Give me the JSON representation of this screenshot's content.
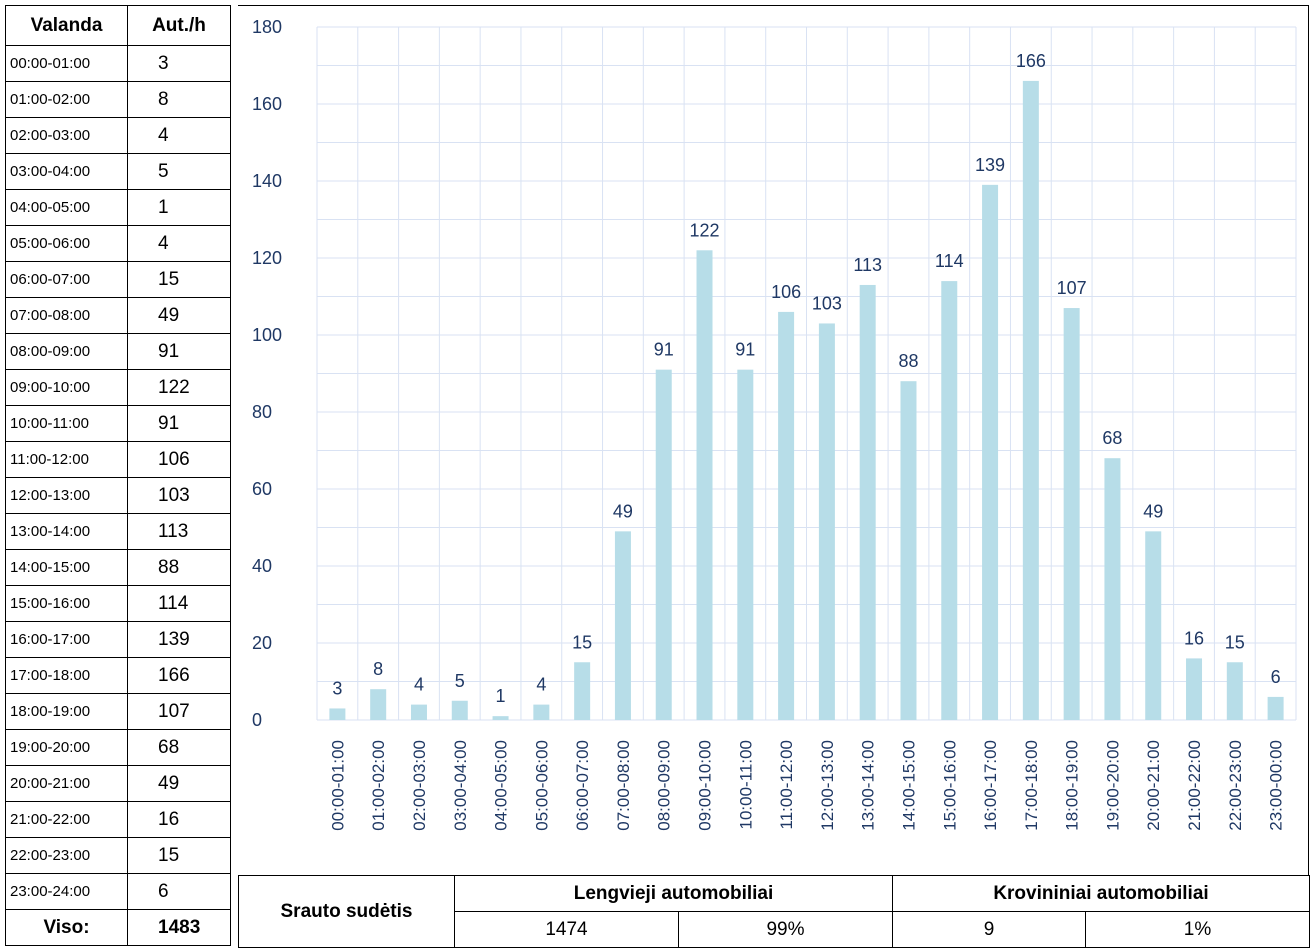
{
  "table": {
    "header_hour": "Valanda",
    "header_value": "Aut./h",
    "rows": [
      {
        "hour": "00:00-01:00",
        "value": "3"
      },
      {
        "hour": "01:00-02:00",
        "value": "8"
      },
      {
        "hour": "02:00-03:00",
        "value": "4"
      },
      {
        "hour": "03:00-04:00",
        "value": "5"
      },
      {
        "hour": "04:00-05:00",
        "value": "1"
      },
      {
        "hour": "05:00-06:00",
        "value": "4"
      },
      {
        "hour": "06:00-07:00",
        "value": "15"
      },
      {
        "hour": "07:00-08:00",
        "value": "49"
      },
      {
        "hour": "08:00-09:00",
        "value": "91"
      },
      {
        "hour": "09:00-10:00",
        "value": "122"
      },
      {
        "hour": "10:00-11:00",
        "value": "91"
      },
      {
        "hour": "11:00-12:00",
        "value": "106"
      },
      {
        "hour": "12:00-13:00",
        "value": "103"
      },
      {
        "hour": "13:00-14:00",
        "value": "113"
      },
      {
        "hour": "14:00-15:00",
        "value": "88"
      },
      {
        "hour": "15:00-16:00",
        "value": "114"
      },
      {
        "hour": "16:00-17:00",
        "value": "139"
      },
      {
        "hour": "17:00-18:00",
        "value": "166"
      },
      {
        "hour": "18:00-19:00",
        "value": "107"
      },
      {
        "hour": "19:00-20:00",
        "value": "68"
      },
      {
        "hour": "20:00-21:00",
        "value": "49"
      },
      {
        "hour": "21:00-22:00",
        "value": "16"
      },
      {
        "hour": "22:00-23:00",
        "value": "15"
      },
      {
        "hour": "23:00-24:00",
        "value": "6"
      }
    ],
    "total_label": "Viso:",
    "total_value": "1483"
  },
  "composition": {
    "label": "Srauto sudėtis",
    "light_header": "Lengvieji automobiliai",
    "light_count": "1474",
    "light_percent": "99%",
    "heavy_header": "Krovininiai automobiliai",
    "heavy_count": "9",
    "heavy_percent": "1%"
  },
  "chart_data": {
    "type": "bar",
    "categories": [
      "00:00-01:00",
      "01:00-02:00",
      "02:00-03:00",
      "03:00-04:00",
      "04:00-05:00",
      "05:00-06:00",
      "06:00-07:00",
      "07:00-08:00",
      "08:00-09:00",
      "09:00-10:00",
      "10:00-11:00",
      "11:00-12:00",
      "12:00-13:00",
      "13:00-14:00",
      "14:00-15:00",
      "15:00-16:00",
      "16:00-17:00",
      "17:00-18:00",
      "18:00-19:00",
      "19:00-20:00",
      "20:00-21:00",
      "21:00-22:00",
      "22:00-23:00",
      "23:00-00:00"
    ],
    "values": [
      3,
      8,
      4,
      5,
      1,
      4,
      15,
      49,
      91,
      122,
      91,
      106,
      103,
      113,
      88,
      114,
      139,
      166,
      107,
      68,
      49,
      16,
      15,
      6
    ],
    "ylim": [
      0,
      180
    ],
    "yticks": [
      0,
      20,
      40,
      60,
      80,
      100,
      120,
      140,
      160,
      180
    ],
    "grid": true,
    "bar_color": "#b7dde8",
    "label_color": "#1f3864",
    "grid_color": "#d9e2f3"
  }
}
